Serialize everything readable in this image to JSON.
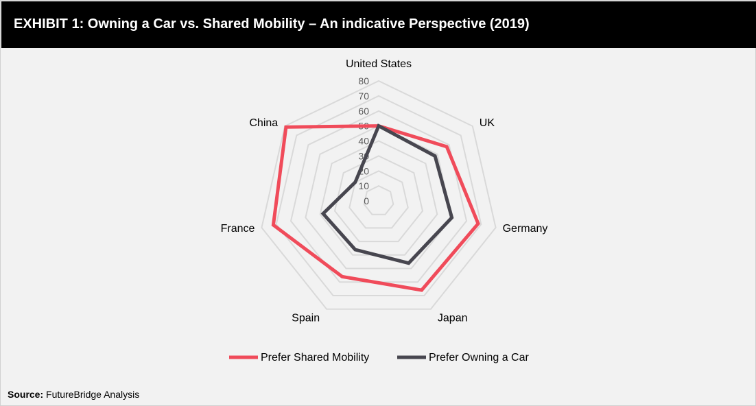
{
  "header": {
    "title": "EXHIBIT 1: Owning a Car vs. Shared Mobility – An indicative Perspective (2019)"
  },
  "source": {
    "label": "Source:",
    "text": "FutureBridge Analysis"
  },
  "chart_data": {
    "type": "radar",
    "categories": [
      "United States",
      "UK",
      "Germany",
      "Japan",
      "Spain",
      "France",
      "China"
    ],
    "rlim": [
      0,
      80
    ],
    "ticks": [
      0,
      10,
      20,
      30,
      40,
      50,
      60,
      70,
      80
    ],
    "grid": true,
    "legend": "bottom",
    "series": [
      {
        "name": "Prefer Shared Mobility",
        "color": "#f04b5a",
        "values": [
          50,
          58,
          68,
          66,
          56,
          72,
          79
        ]
      },
      {
        "name": "Prefer Owning a Car",
        "color": "#47464f",
        "values": [
          50,
          48,
          50,
          46,
          36,
          38,
          20
        ]
      }
    ]
  }
}
